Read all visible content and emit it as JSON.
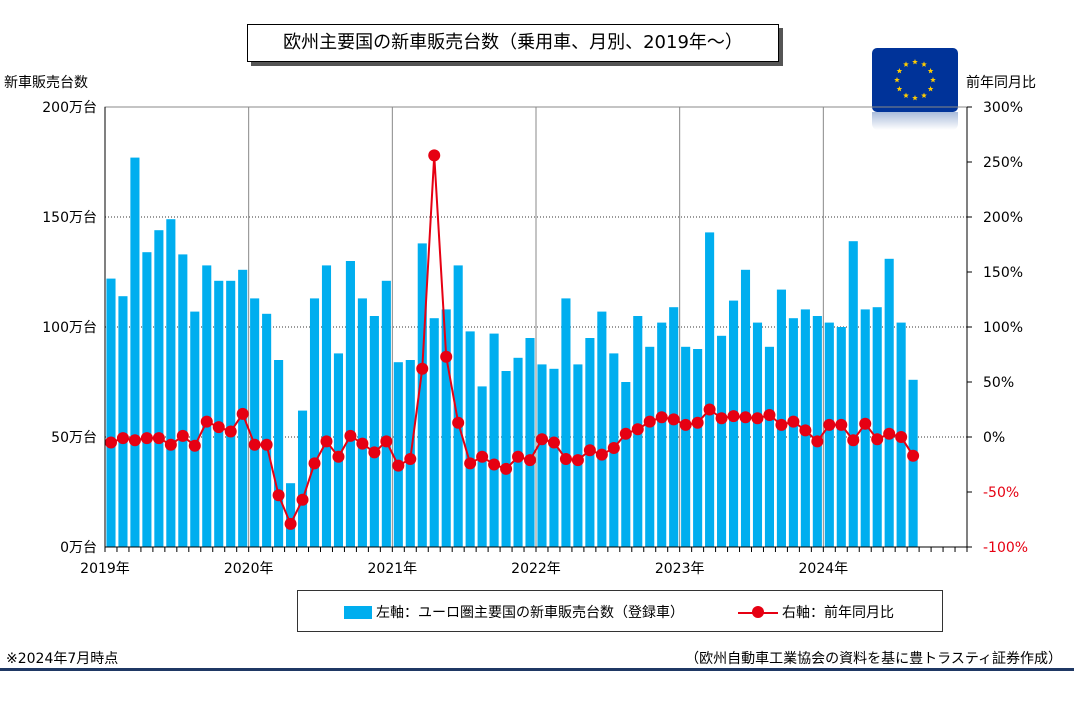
{
  "title": "欧州主要国の新車販売台数（乗用車、月別、2019年～）",
  "left_axis_title": "新車販売台数",
  "right_axis_title": "前年同月比",
  "legend": {
    "bar_label": "左軸：ユーロ圏主要国の新車販売台数（登録車）",
    "line_label": "右軸：前年同月比"
  },
  "note": "※2024年7月時点",
  "source": "（欧州自動車工業協会の資料を基に豊トラスティ証券作成）",
  "flag_icon": "eu-flag-icon",
  "colors": {
    "bar": "#00aeef",
    "line": "#e60012",
    "right_axis_neg": "#e60012",
    "rule": "#1f3864"
  },
  "chart_data": {
    "type": "bar+line",
    "x_year_labels": [
      "2019年",
      "2020年",
      "2021年",
      "2022年",
      "2023年",
      "2024年"
    ],
    "left_axis": {
      "min": 0,
      "max": 200,
      "ticks": [
        0,
        50,
        100,
        150,
        200
      ],
      "tick_labels": [
        "0万台",
        "50万台",
        "100万台",
        "150万台",
        "200万台"
      ]
    },
    "right_axis": {
      "min": -100,
      "max": 300,
      "ticks": [
        -100,
        -50,
        0,
        50,
        100,
        150,
        200,
        250,
        300
      ],
      "tick_labels": [
        "-100%",
        "-50%",
        "0%",
        "50%",
        "100%",
        "150%",
        "200%",
        "250%",
        "300%"
      ]
    },
    "grid": true,
    "series": [
      {
        "name": "左軸：ユーロ圏主要国の新車販売台数（登録車）",
        "type": "bar",
        "unit": "万台",
        "values": [
          122,
          114,
          177,
          134,
          144,
          149,
          133,
          107,
          128,
          121,
          121,
          126,
          113,
          106,
          85,
          29,
          62,
          113,
          128,
          88,
          130,
          113,
          105,
          121,
          84,
          85,
          138,
          104,
          108,
          128,
          98,
          73,
          97,
          80,
          86,
          95,
          83,
          81,
          113,
          83,
          95,
          107,
          88,
          75,
          105,
          91,
          102,
          109,
          91,
          90,
          143,
          96,
          112,
          126,
          102,
          91,
          117,
          104,
          108,
          105,
          102,
          100,
          139,
          108,
          109,
          131,
          102,
          76
        ]
      },
      {
        "name": "右軸：前年同月比",
        "type": "line",
        "unit": "%",
        "values": [
          -5,
          -1,
          -3,
          -1,
          -1,
          -7,
          1,
          -8,
          14,
          9,
          5,
          21,
          -7,
          -7,
          -53,
          -79,
          -57,
          -24,
          -4,
          -18,
          1,
          -6,
          -14,
          -4,
          -26,
          -20,
          62,
          256,
          73,
          13,
          -24,
          -18,
          -25,
          -29,
          -18,
          -21,
          -2,
          -5,
          -20,
          -21,
          -12,
          -16,
          -10,
          3,
          7,
          14,
          18,
          16,
          11,
          13,
          25,
          17,
          19,
          18,
          17,
          20,
          11,
          14,
          6,
          -4,
          11,
          11,
          -3,
          12,
          -2,
          3,
          0,
          -17
        ]
      }
    ]
  }
}
